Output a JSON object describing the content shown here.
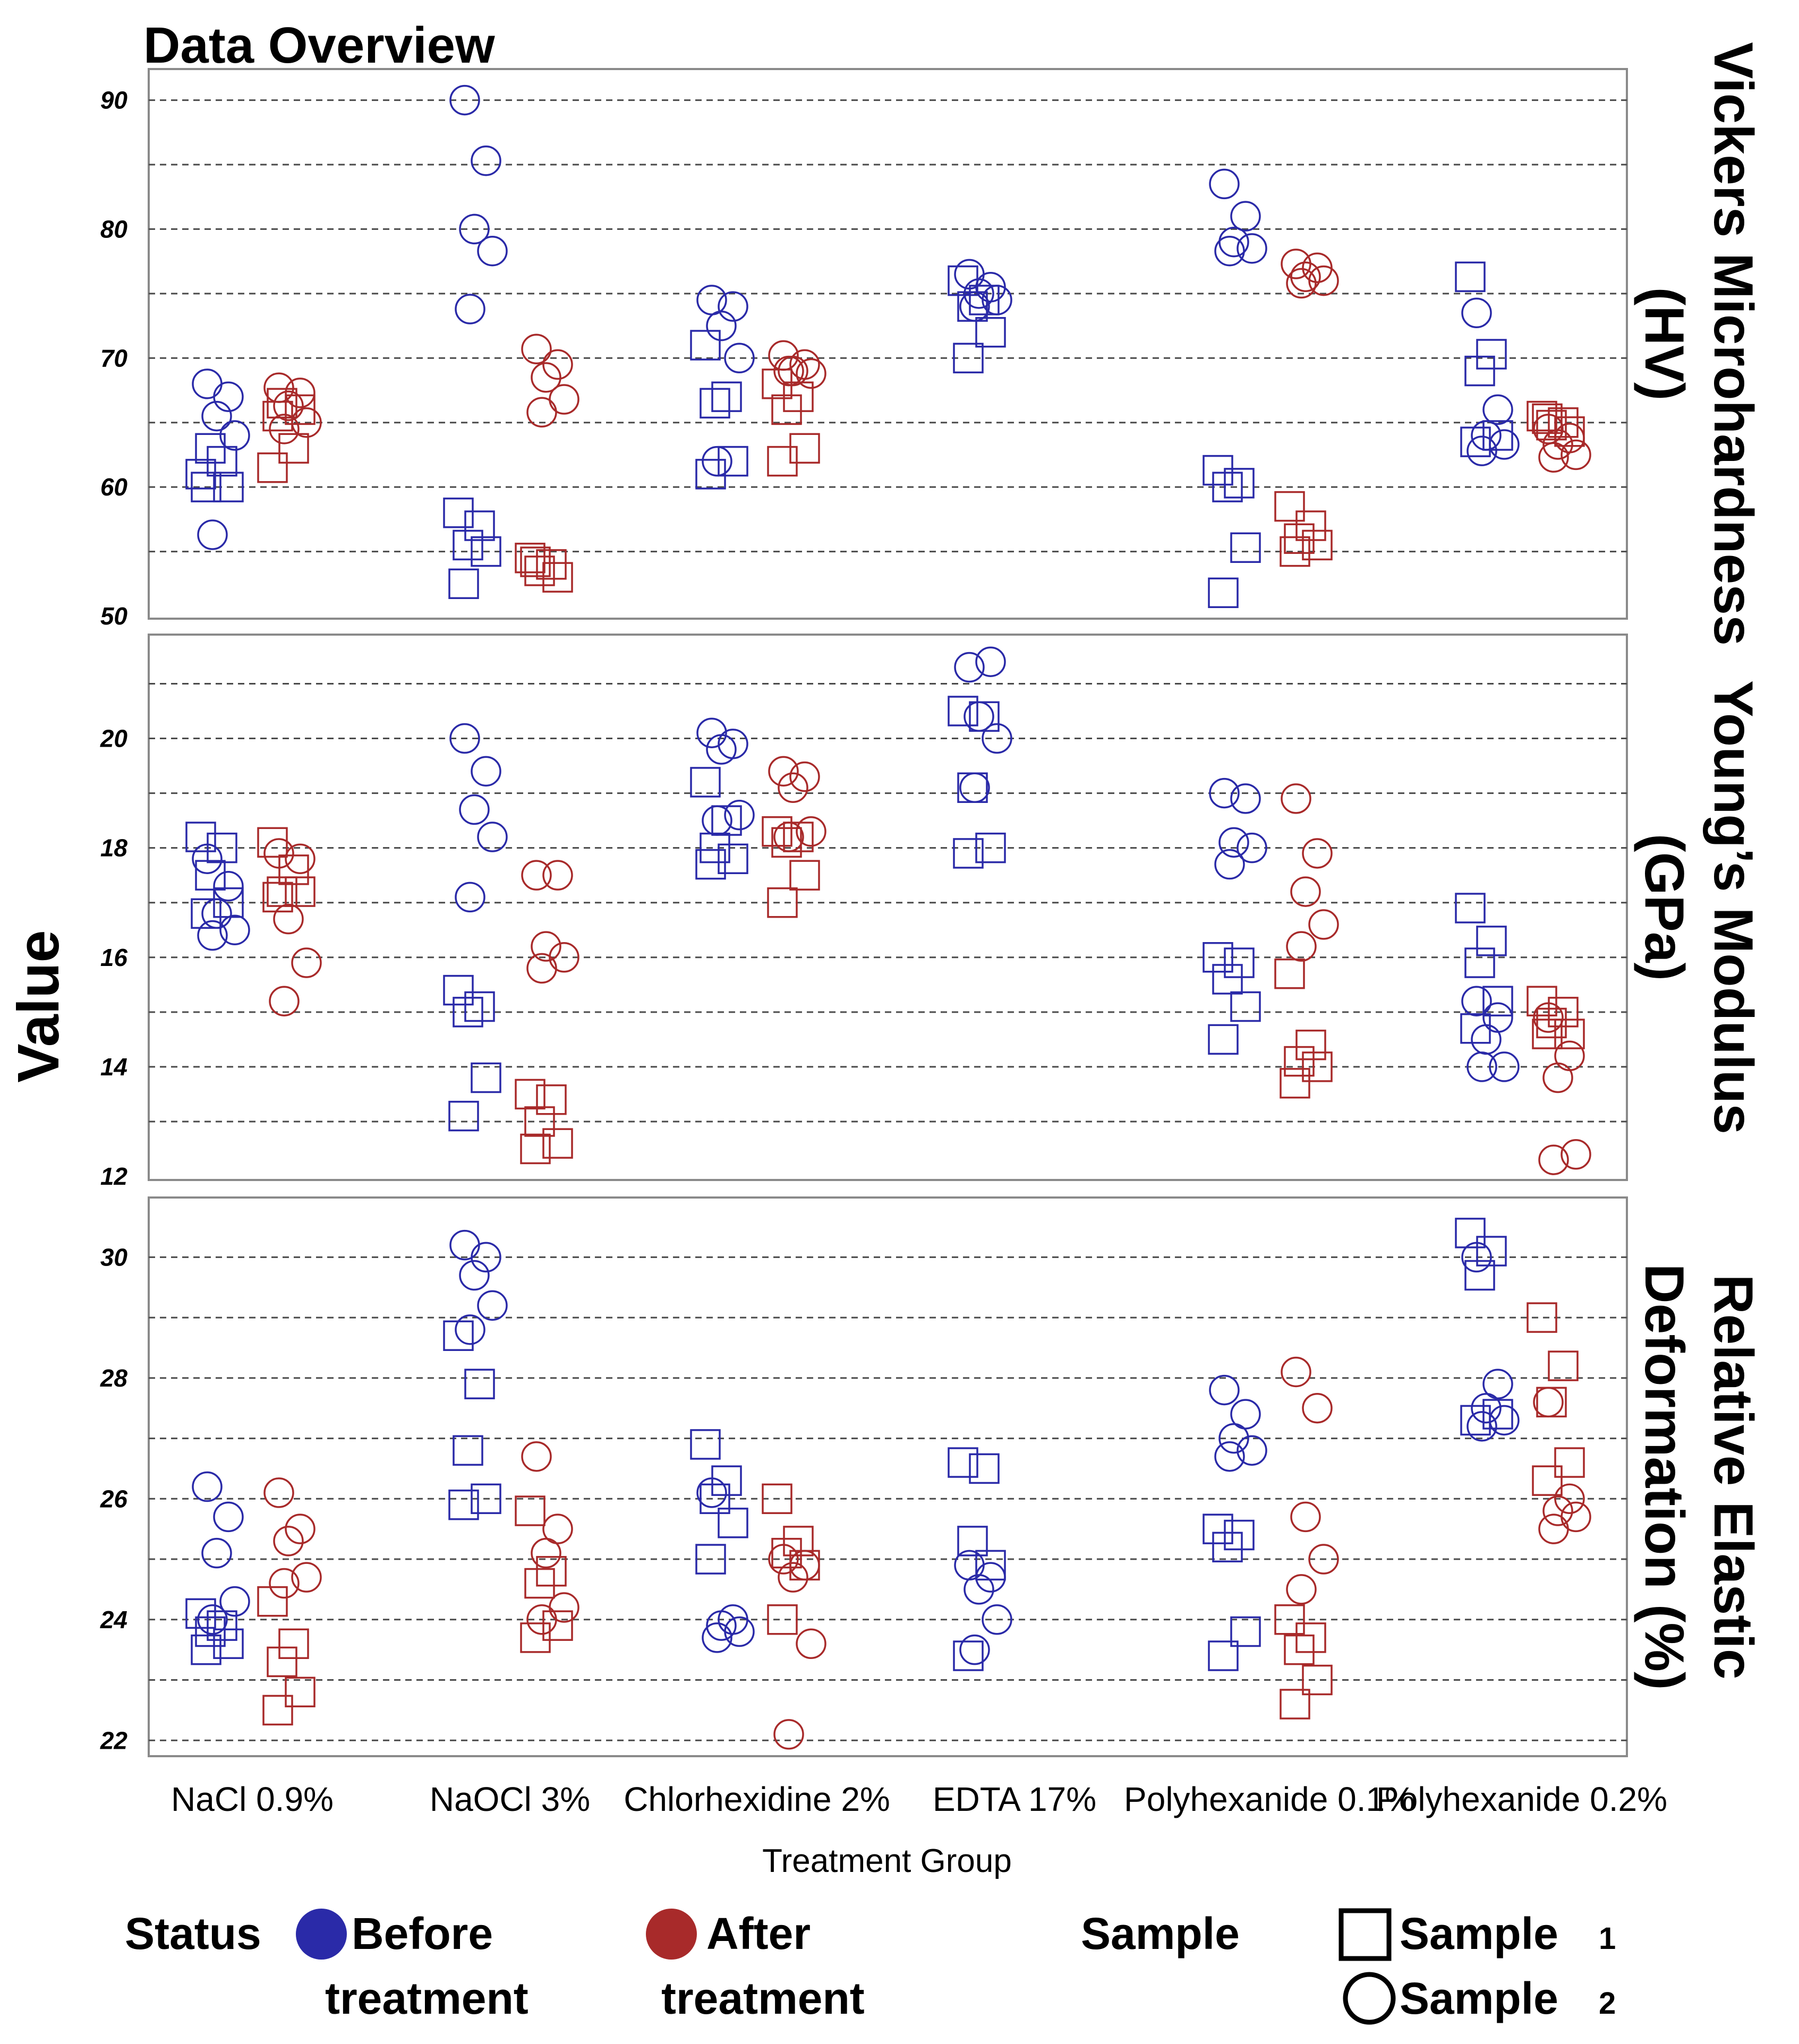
{
  "chart_data": {
    "type": "scatter",
    "title": "Data Overview",
    "ylabel": "Value",
    "xlabel": "Treatment Group",
    "categories": [
      "NaCl 0.9%",
      "NaOCl 3%",
      "Chlorhexidine 2%",
      "EDTA 17%",
      "Polyhexanide 0.1%",
      "Polyhexanide 0.2%"
    ],
    "colors": {
      "before": "#2a2aa8",
      "after": "#a82a2a"
    },
    "legend": {
      "status_title": "Status",
      "before_label": [
        "Before",
        "treatment"
      ],
      "after_label": [
        "After",
        "treatment"
      ],
      "sample_title": "Sample",
      "sample1_label": [
        "Sample",
        "1"
      ],
      "sample2_label": [
        "Sample",
        "2"
      ]
    },
    "grid": true,
    "panels": [
      {
        "label": [
          "Vickers Microhardness",
          "(HV)"
        ],
        "ylim": [
          50,
          92
        ],
        "ticks": [
          50,
          60,
          70,
          80,
          90
        ],
        "gridlines": [
          55,
          60,
          65,
          70,
          75,
          80,
          85,
          90
        ],
        "points": [
          {
            "group": 0,
            "status": "before",
            "sample": 1,
            "values": [
              61,
              62,
              63,
              60,
              60
            ]
          },
          {
            "group": 0,
            "status": "before",
            "sample": 2,
            "values": [
              68,
              67,
              65.5,
              64,
              56.3
            ]
          },
          {
            "group": 0,
            "status": "after",
            "sample": 1,
            "values": [
              61.5,
              63,
              66.5,
              66,
              65.5
            ]
          },
          {
            "group": 0,
            "status": "after",
            "sample": 2,
            "values": [
              67.7,
              67.3,
              66.3,
              65,
              64.5
            ]
          },
          {
            "group": 1,
            "status": "before",
            "sample": 1,
            "values": [
              58,
              57,
              55.5,
              55,
              52.5
            ]
          },
          {
            "group": 1,
            "status": "before",
            "sample": 2,
            "values": [
              90,
              85.3,
              80,
              78.3,
              73.8
            ]
          },
          {
            "group": 1,
            "status": "after",
            "sample": 1,
            "values": [
              54.5,
              54,
              53.5,
              53,
              54.2
            ]
          },
          {
            "group": 1,
            "status": "after",
            "sample": 2,
            "values": [
              70.7,
              69.5,
              68.5,
              66.8,
              65.8
            ]
          },
          {
            "group": 2,
            "status": "before",
            "sample": 1,
            "values": [
              71,
              67,
              66.5,
              62,
              61
            ]
          },
          {
            "group": 2,
            "status": "before",
            "sample": 2,
            "values": [
              74.5,
              74,
              72.5,
              70,
              62
            ]
          },
          {
            "group": 2,
            "status": "after",
            "sample": 1,
            "values": [
              68,
              67,
              66,
              63,
              62
            ]
          },
          {
            "group": 2,
            "status": "after",
            "sample": 2,
            "values": [
              70.2,
              69.5,
              69,
              68.8,
              69
            ]
          },
          {
            "group": 3,
            "status": "before",
            "sample": 1,
            "values": [
              76,
              74.5,
              74,
              72,
              70
            ]
          },
          {
            "group": 3,
            "status": "before",
            "sample": 2,
            "values": [
              76.5,
              75.5,
              75,
              74.5,
              74
            ]
          },
          {
            "group": 4,
            "status": "before",
            "sample": 1,
            "values": [
              61.3,
              60.3,
              60,
              55.3,
              51.8
            ]
          },
          {
            "group": 4,
            "status": "before",
            "sample": 2,
            "values": [
              83.5,
              81,
              79,
              78.5,
              78.3
            ]
          },
          {
            "group": 4,
            "status": "after",
            "sample": 1,
            "values": [
              58.5,
              57,
              56,
              55.5,
              55
            ]
          },
          {
            "group": 4,
            "status": "after",
            "sample": 2,
            "values": [
              77.3,
              77,
              76.3,
              76,
              75.8
            ]
          },
          {
            "group": 5,
            "status": "before",
            "sample": 1,
            "values": [
              76.3,
              70.3,
              69,
              64,
              63.5
            ]
          },
          {
            "group": 5,
            "status": "before",
            "sample": 2,
            "values": [
              73.5,
              66,
              64,
              63.3,
              62.8
            ]
          },
          {
            "group": 5,
            "status": "after",
            "sample": 1,
            "values": [
              65.5,
              65,
              64.8,
              64.3,
              65.3
            ]
          },
          {
            "group": 5,
            "status": "after",
            "sample": 2,
            "values": [
              64.5,
              63.8,
              63.3,
              62.5,
              62.3
            ]
          }
        ]
      },
      {
        "label": [
          "Young’s Modulus",
          "(GPa)"
        ],
        "ylim": [
          12,
          21.8
        ],
        "ticks": [
          12,
          14,
          16,
          18,
          20
        ],
        "gridlines": [
          13,
          14,
          15,
          16,
          17,
          18,
          19,
          20,
          21
        ],
        "points": [
          {
            "group": 0,
            "status": "before",
            "sample": 1,
            "values": [
              18.2,
              18,
              17.5,
              17,
              16.8
            ]
          },
          {
            "group": 0,
            "status": "before",
            "sample": 2,
            "values": [
              17.8,
              17.3,
              16.8,
              16.5,
              16.4
            ]
          },
          {
            "group": 0,
            "status": "after",
            "sample": 1,
            "values": [
              18.1,
              17.6,
              17.2,
              17.2,
              17.1
            ]
          },
          {
            "group": 0,
            "status": "after",
            "sample": 2,
            "values": [
              17.9,
              17.8,
              16.7,
              15.9,
              15.2
            ]
          },
          {
            "group": 1,
            "status": "before",
            "sample": 1,
            "values": [
              15.4,
              15.1,
              15,
              13.8,
              13.1
            ]
          },
          {
            "group": 1,
            "status": "before",
            "sample": 2,
            "values": [
              20,
              19.4,
              18.7,
              18.2,
              17.1
            ]
          },
          {
            "group": 1,
            "status": "after",
            "sample": 1,
            "values": [
              13.5,
              13.4,
              13,
              12.6,
              12.5
            ]
          },
          {
            "group": 1,
            "status": "after",
            "sample": 2,
            "values": [
              17.5,
              17.5,
              16.2,
              16,
              15.8
            ]
          },
          {
            "group": 2,
            "status": "before",
            "sample": 1,
            "values": [
              19.2,
              18.5,
              18,
              17.8,
              17.7
            ]
          },
          {
            "group": 2,
            "status": "before",
            "sample": 2,
            "values": [
              20.1,
              19.9,
              19.8,
              18.6,
              18.5
            ]
          },
          {
            "group": 2,
            "status": "after",
            "sample": 1,
            "values": [
              18.3,
              18.2,
              18.1,
              17.5,
              17
            ]
          },
          {
            "group": 2,
            "status": "after",
            "sample": 2,
            "values": [
              19.4,
              19.3,
              19.1,
              18.3,
              18.2
            ]
          },
          {
            "group": 3,
            "status": "before",
            "sample": 1,
            "values": [
              20.5,
              20.4,
              19.1,
              18,
              17.9
            ]
          },
          {
            "group": 3,
            "status": "before",
            "sample": 2,
            "values": [
              21.3,
              21.4,
              20.4,
              20,
              19.1
            ]
          },
          {
            "group": 4,
            "status": "before",
            "sample": 1,
            "values": [
              16,
              15.9,
              15.6,
              15.1,
              14.5
            ]
          },
          {
            "group": 4,
            "status": "before",
            "sample": 2,
            "values": [
              19,
              18.9,
              18.1,
              18,
              17.7
            ]
          },
          {
            "group": 4,
            "status": "after",
            "sample": 1,
            "values": [
              15.7,
              14.4,
              14.1,
              14,
              13.7
            ]
          },
          {
            "group": 4,
            "status": "after",
            "sample": 2,
            "values": [
              18.9,
              17.9,
              17.2,
              16.6,
              16.2
            ]
          },
          {
            "group": 5,
            "status": "before",
            "sample": 1,
            "values": [
              16.9,
              16.3,
              15.9,
              15.2,
              14.7
            ]
          },
          {
            "group": 5,
            "status": "before",
            "sample": 2,
            "values": [
              15.2,
              14.9,
              14.5,
              14,
              14
            ]
          },
          {
            "group": 5,
            "status": "after",
            "sample": 1,
            "values": [
              15.2,
              15,
              14.8,
              14.6,
              14.6
            ]
          },
          {
            "group": 5,
            "status": "after",
            "sample": 2,
            "values": [
              14.9,
              14.2,
              13.8,
              12.4,
              12.3
            ]
          }
        ]
      },
      {
        "label": [
          "Relative Elastic",
          "Deformation (%)"
        ],
        "ylim": [
          21.8,
          30.9
        ],
        "ticks": [
          22,
          24,
          26,
          28,
          30
        ],
        "gridlines": [
          22,
          23,
          24,
          25,
          26,
          27,
          28,
          29,
          30
        ],
        "points": [
          {
            "group": 0,
            "status": "before",
            "sample": 1,
            "values": [
              24.1,
              23.9,
              23.8,
              23.6,
              23.5
            ]
          },
          {
            "group": 0,
            "status": "before",
            "sample": 2,
            "values": [
              26.2,
              25.7,
              25.1,
              24.3,
              24
            ]
          },
          {
            "group": 0,
            "status": "after",
            "sample": 1,
            "values": [
              24.3,
              23.6,
              23.3,
              22.8,
              22.5
            ]
          },
          {
            "group": 0,
            "status": "after",
            "sample": 2,
            "values": [
              26.1,
              25.5,
              25.3,
              24.7,
              24.6
            ]
          },
          {
            "group": 1,
            "status": "before",
            "sample": 1,
            "values": [
              28.7,
              27.9,
              26.8,
              26,
              25.9
            ]
          },
          {
            "group": 1,
            "status": "before",
            "sample": 2,
            "values": [
              30.2,
              30,
              29.7,
              29.2,
              28.8
            ]
          },
          {
            "group": 1,
            "status": "after",
            "sample": 1,
            "values": [
              25.8,
              24.8,
              24.6,
              23.9,
              23.7
            ]
          },
          {
            "group": 1,
            "status": "after",
            "sample": 2,
            "values": [
              26.7,
              25.5,
              25.1,
              24.2,
              24
            ]
          },
          {
            "group": 2,
            "status": "before",
            "sample": 1,
            "values": [
              26.9,
              26.3,
              26,
              25.6,
              25
            ]
          },
          {
            "group": 2,
            "status": "before",
            "sample": 2,
            "values": [
              26.1,
              24,
              23.9,
              23.8,
              23.7
            ]
          },
          {
            "group": 2,
            "status": "after",
            "sample": 1,
            "values": [
              26,
              25.3,
              25.1,
              24.9,
              24
            ]
          },
          {
            "group": 2,
            "status": "after",
            "sample": 2,
            "values": [
              25,
              24.9,
              24.7,
              23.6,
              22.1
            ]
          },
          {
            "group": 3,
            "status": "before",
            "sample": 1,
            "values": [
              26.6,
              26.5,
              25.3,
              24.9,
              23.4
            ]
          },
          {
            "group": 3,
            "status": "before",
            "sample": 2,
            "values": [
              24.9,
              24.7,
              24.5,
              24,
              23.5
            ]
          },
          {
            "group": 4,
            "status": "before",
            "sample": 1,
            "values": [
              25.5,
              25.4,
              25.2,
              23.8,
              23.4
            ]
          },
          {
            "group": 4,
            "status": "before",
            "sample": 2,
            "values": [
              27.8,
              27.4,
              27,
              26.8,
              26.7
            ]
          },
          {
            "group": 4,
            "status": "after",
            "sample": 1,
            "values": [
              24,
              23.7,
              23.5,
              23,
              22.6
            ]
          },
          {
            "group": 4,
            "status": "after",
            "sample": 2,
            "values": [
              28.1,
              27.5,
              25.7,
              25,
              24.5
            ]
          },
          {
            "group": 5,
            "status": "before",
            "sample": 1,
            "values": [
              30.4,
              30.1,
              29.7,
              27.4,
              27.3
            ]
          },
          {
            "group": 5,
            "status": "before",
            "sample": 2,
            "values": [
              30,
              27.9,
              27.5,
              27.3,
              27.2
            ]
          },
          {
            "group": 5,
            "status": "after",
            "sample": 1,
            "values": [
              29,
              28.2,
              27.6,
              26.6,
              26.3
            ]
          },
          {
            "group": 5,
            "status": "after",
            "sample": 2,
            "values": [
              27.6,
              26,
              25.8,
              25.7,
              25.5
            ]
          }
        ]
      }
    ]
  }
}
